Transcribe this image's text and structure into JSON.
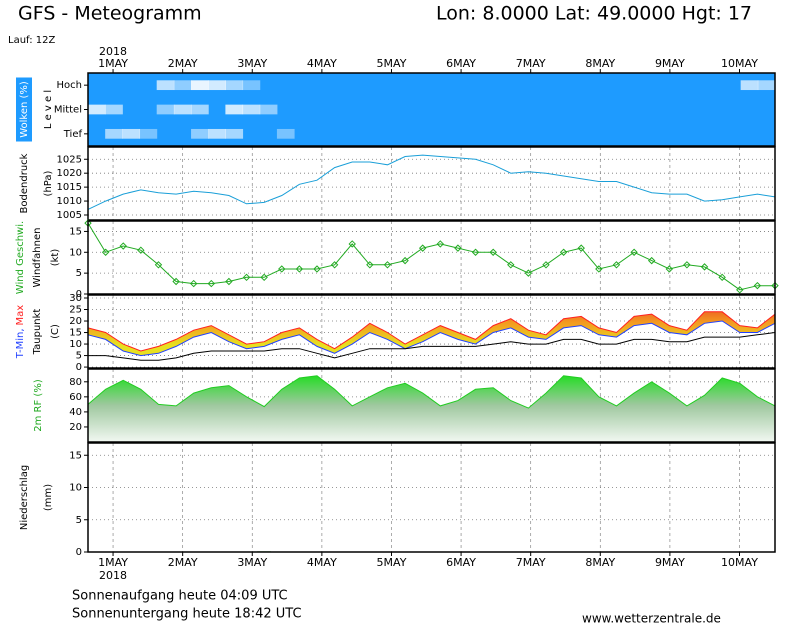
{
  "header": {
    "title": "GFS - Meteogramm",
    "location": "Lon: 8.0000 Lat: 49.0000 Hgt: 17",
    "run": "Lauf: 12Z"
  },
  "time_axis": {
    "year": "2018",
    "xlim": [
      -0.36,
      9.51
    ],
    "xticks": [
      {
        "value": 0,
        "label": "1MAY"
      },
      {
        "value": 1,
        "label": "2MAY"
      },
      {
        "value": 2,
        "label": "3MAY"
      },
      {
        "value": 3,
        "label": "4MAY"
      },
      {
        "value": 4,
        "label": "5MAY"
      },
      {
        "value": 5,
        "label": "6MAY"
      },
      {
        "value": 6,
        "label": "7MAY"
      },
      {
        "value": 7,
        "label": "8MAY"
      },
      {
        "value": 8,
        "label": "9MAY"
      },
      {
        "value": 9,
        "label": "10MAY"
      }
    ]
  },
  "chart_data": [
    {
      "type": "heatmap",
      "ylabel": [
        "Wolken (%)",
        "L e v e l"
      ],
      "background": "#1e9bff",
      "series": [
        {
          "name": "Hoch",
          "color": "#ffffff",
          "values": [
            0,
            0,
            0,
            0,
            70,
            50,
            90,
            80,
            60,
            40,
            0,
            0,
            0,
            0,
            0,
            0,
            0,
            0,
            0,
            0,
            0,
            0,
            0,
            0,
            0,
            0,
            0,
            0,
            0,
            0,
            0,
            0,
            0,
            0,
            0,
            0,
            0,
            0,
            70,
            60
          ]
        },
        {
          "name": "Mittel",
          "color": "#ffffff",
          "values": [
            80,
            60,
            0,
            0,
            50,
            70,
            60,
            0,
            80,
            70,
            50,
            0,
            0,
            0,
            0,
            0,
            0,
            0,
            0,
            0,
            0,
            0,
            0,
            0,
            0,
            0,
            0,
            0,
            0,
            0,
            0,
            0,
            0,
            0,
            0,
            0,
            0,
            0,
            0,
            0
          ]
        },
        {
          "name": "Tief",
          "color": "#ffffff",
          "values": [
            0,
            60,
            70,
            40,
            0,
            0,
            50,
            70,
            60,
            0,
            0,
            40,
            0,
            0,
            0,
            0,
            0,
            0,
            0,
            0,
            0,
            0,
            0,
            0,
            0,
            0,
            0,
            0,
            0,
            0,
            0,
            0,
            0,
            0,
            0,
            0,
            0,
            0,
            0,
            0
          ]
        }
      ]
    },
    {
      "type": "line",
      "ylabel": [
        "Bodendruck",
        "(hPa)"
      ],
      "ylim": [
        1003.2,
        1029.4
      ],
      "yticks": [
        1005,
        1010,
        1015,
        1020,
        1025
      ],
      "grid": true,
      "series": [
        {
          "color": "#1a9fd8",
          "values": [
            1007,
            1010,
            1012.5,
            1014,
            1013,
            1012.5,
            1013.5,
            1013,
            1012,
            1009,
            1009.5,
            1012,
            1016,
            1017.5,
            1022,
            1024,
            1024,
            1023,
            1026,
            1026.5,
            1026,
            1025.5,
            1025,
            1023,
            1020,
            1020.5,
            1020,
            1019,
            1018,
            1017,
            1017,
            1015,
            1013,
            1012.5,
            1012.5,
            1010,
            1010.5,
            1011.5,
            1012.5,
            1011.5
          ]
        }
      ]
    },
    {
      "type": "line",
      "ylabel": [
        "Wind Geschwi.",
        "Windfahnen",
        "(kt)"
      ],
      "ylabel_color": "#22aa22",
      "markers": true,
      "ylim": [
        0,
        17.5
      ],
      "yticks": [
        0,
        5,
        10,
        15
      ],
      "grid": true,
      "series": [
        {
          "color": "#22aa22",
          "values": [
            17,
            10,
            11.5,
            10.5,
            7,
            3,
            2.5,
            2.5,
            3,
            4,
            4,
            6,
            6,
            6,
            7,
            12,
            7,
            7,
            8,
            11,
            12,
            11,
            10,
            10,
            7,
            5,
            7,
            10,
            11,
            6,
            7,
            10,
            8,
            6,
            7,
            6.5,
            4,
            1,
            2,
            2
          ]
        }
      ]
    },
    {
      "type": "range",
      "ylabel": [
        "(C)"
      ],
      "ylim": [
        -0.4,
        31.3
      ],
      "yticks": [
        0,
        5,
        10,
        15,
        20,
        25,
        30
      ],
      "grid": true,
      "series": [
        {
          "name": "T-Min,",
          "color": "#2040ff",
          "values": [
            14,
            12,
            7,
            5,
            6,
            9,
            13,
            15,
            11,
            8,
            9,
            12,
            14,
            9,
            6,
            10,
            15,
            12,
            8,
            11,
            15,
            12,
            10,
            15,
            17,
            13,
            12,
            17,
            18,
            14,
            13,
            18,
            19,
            15,
            14,
            19,
            20,
            15,
            15,
            19
          ]
        },
        {
          "name": "Max",
          "color": "#ff2020",
          "values": [
            17,
            15,
            10,
            7,
            9,
            12,
            16,
            18,
            14,
            10,
            11,
            15,
            17,
            12,
            8,
            13,
            19,
            15,
            10,
            14,
            18,
            15,
            12,
            18,
            21,
            16,
            14,
            21,
            22,
            17,
            15,
            22,
            23,
            18,
            16,
            24,
            24,
            18,
            17,
            23
          ]
        },
        {
          "name": "Taupunkt",
          "color": "#000000",
          "values": [
            5,
            5,
            4,
            3,
            3,
            4,
            6,
            7,
            7,
            7,
            7,
            8,
            8,
            6,
            4,
            6,
            8,
            8,
            8,
            9,
            9,
            9,
            9,
            10,
            11,
            10,
            10,
            12,
            12,
            10,
            10,
            12,
            12,
            11,
            11,
            13,
            13,
            13,
            14,
            15
          ]
        }
      ]
    },
    {
      "type": "area",
      "ylabel": [
        "2m RF (%)"
      ],
      "ylabel_color": "#22aa22",
      "ylim": [
        0,
        97
      ],
      "yticks": [
        20,
        40,
        60,
        80
      ],
      "grid": true,
      "series": [
        {
          "color": "#22cc22",
          "values": [
            50,
            70,
            82,
            70,
            50,
            48,
            65,
            72,
            75,
            60,
            47,
            70,
            85,
            88,
            70,
            48,
            60,
            72,
            78,
            65,
            48,
            55,
            70,
            72,
            55,
            45,
            65,
            88,
            85,
            60,
            48,
            65,
            80,
            65,
            48,
            62,
            85,
            78,
            60,
            48
          ]
        }
      ]
    },
    {
      "type": "bar",
      "ylabel": [
        "Niederschlag",
        "(mm)"
      ],
      "ylim": [
        0,
        16.9
      ],
      "yticks": [
        0,
        5,
        10,
        15
      ],
      "grid": true,
      "series": [
        {
          "color": "#22aa22",
          "values": [
            0,
            0,
            0,
            0,
            0,
            0,
            0,
            0,
            0,
            0,
            0.1,
            0,
            0,
            0,
            0,
            0,
            0,
            0,
            0,
            0,
            0,
            0,
            0,
            0,
            0,
            0,
            0,
            0,
            0,
            0,
            0,
            0,
            0,
            0,
            0,
            0,
            0,
            0,
            0,
            0
          ]
        }
      ]
    }
  ],
  "footer": {
    "sunrise": "Sonnenaufgang heute 04:09 UTC",
    "sunset": "Sonnenuntergang heute 18:42 UTC",
    "source": "www.wetterzentrale.de"
  }
}
